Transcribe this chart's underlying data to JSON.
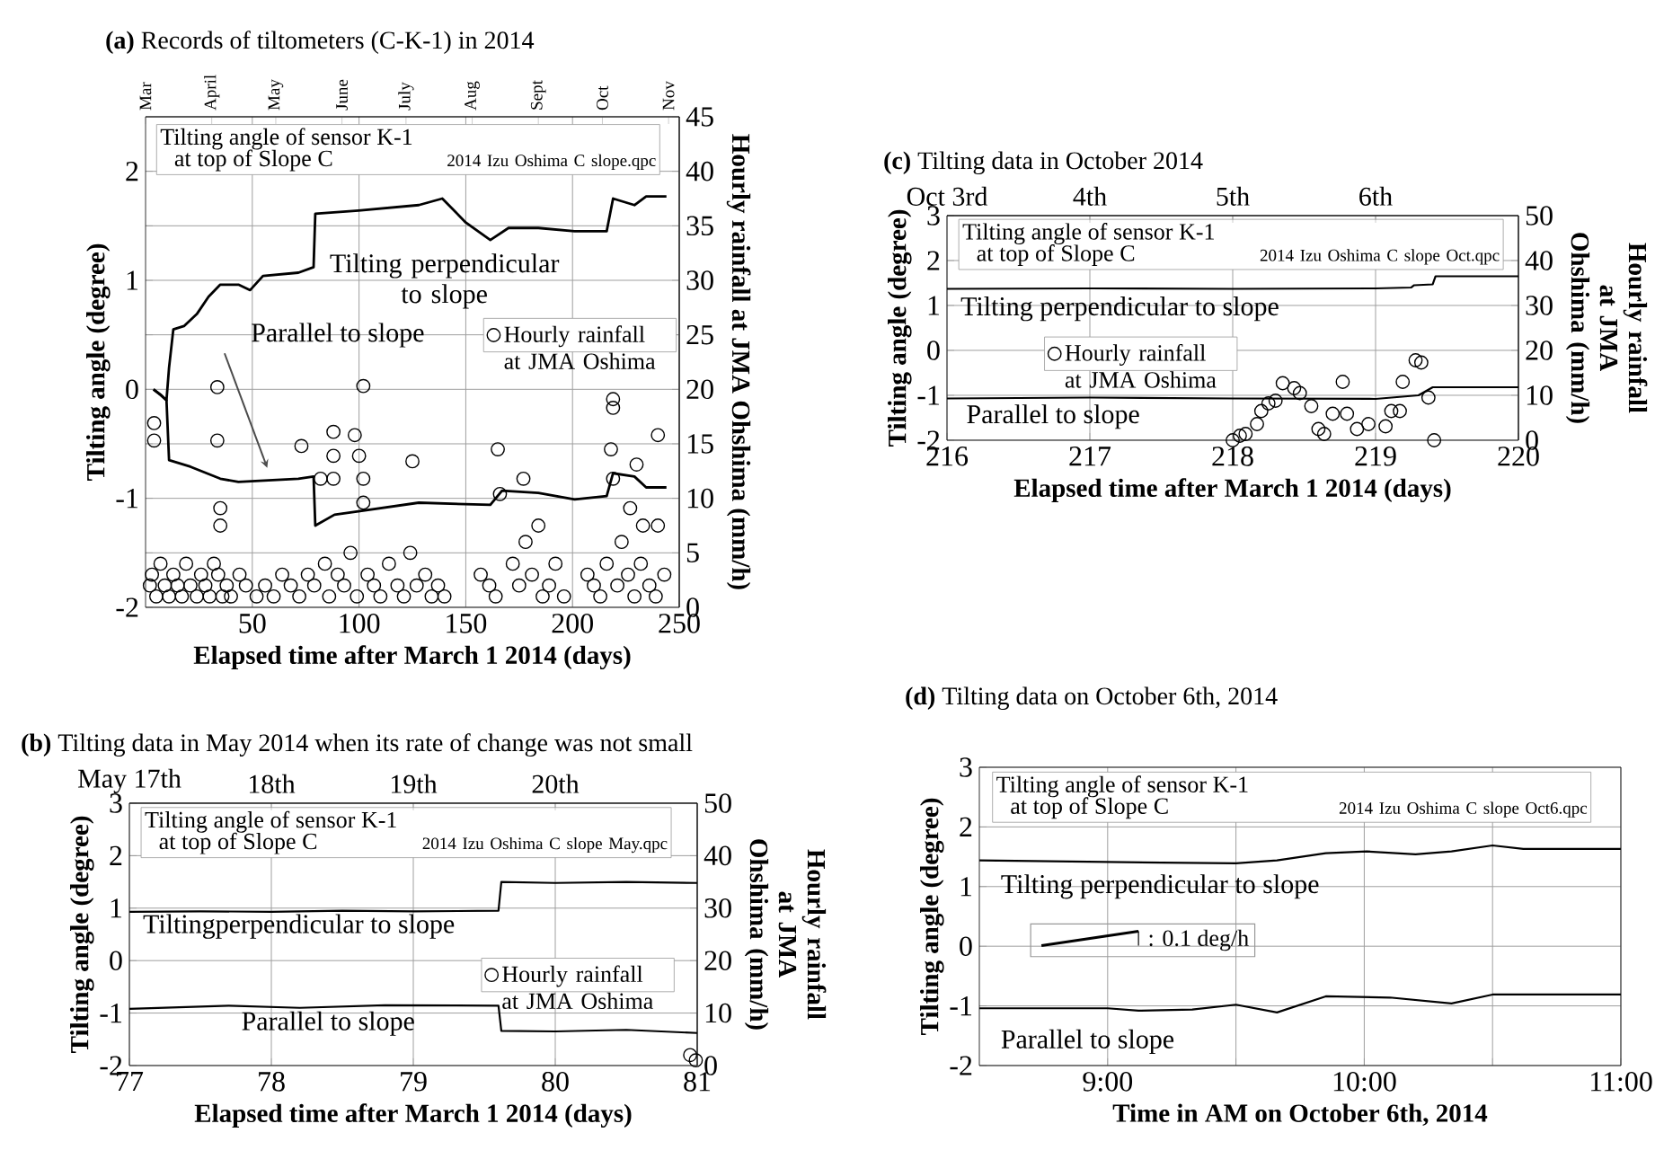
{
  "chart_data": [
    {
      "type": "line",
      "title": "**(a)** Records of tiltometers (C-K-1) in 2014",
      "xlabel": "Elapsed time after March 1 2014 (days)",
      "ylabel": "Tilting angle (degree)",
      "y2label": "Hourly rainfall at JMA Ohshima (mm/h)",
      "xlim": [
        0,
        250
      ],
      "xticks": [
        50,
        100,
        150,
        200,
        250
      ],
      "x2lim": [
        "2014-03-01",
        "2014-11-06"
      ],
      "x2ticks": [
        {
          "value": "2014-03-01",
          "label": "Mar"
        },
        {
          "value": "2014-04-01",
          "label": "April"
        },
        {
          "value": "2014-05-01",
          "label": "May"
        },
        {
          "value": "2014-06-01",
          "label": "June"
        },
        {
          "value": "2014-07-01",
          "label": "July"
        },
        {
          "value": "2014-08-01",
          "label": "Aug"
        },
        {
          "value": "2014-09-01",
          "label": "Sept"
        },
        {
          "value": "2014-10-01",
          "label": "Oct"
        },
        {
          "value": "2014-11-01",
          "label": "Nov"
        }
      ],
      "ylim": [
        -2,
        2.5
      ],
      "yticks": [
        -2,
        {
          "value": -1.5,
          "label": null
        },
        -1,
        {
          "value": -0.5,
          "label": null
        },
        0,
        {
          "value": 0.5,
          "label": null
        },
        1,
        {
          "value": 1.5,
          "label": null
        },
        2
      ],
      "y2lim": [
        0,
        45
      ],
      "y2ticks": [
        0,
        5,
        10,
        15,
        20,
        25,
        30,
        35,
        40,
        45
      ],
      "grid": true,
      "legend": "right",
      "annotations": [
        "Tilting angle of sensor K-1",
        "at top of Slope C",
        "2014 Izu Oshima C slope.qpc"
      ],
      "series": [
        {
          "name": "Tilting perpendicular to slope",
          "color": "#000000",
          "x": [
            3.7,
            7,
            9.8,
            11,
            13,
            18,
            24,
            29.5,
            35,
            43.5,
            49,
            55,
            71.6,
            78.7,
            79.5,
            99.7,
            128,
            139,
            150,
            161.5,
            170,
            184,
            201,
            216,
            219,
            229,
            234.5,
            244
          ],
          "values": [
            0,
            -0.05,
            -0.1,
            0.2,
            0.55,
            0.58,
            0.69,
            0.85,
            0.96,
            0.96,
            0.91,
            1.04,
            1.07,
            1.12,
            1.61,
            1.64,
            1.69,
            1.75,
            1.53,
            1.37,
            1.48,
            1.48,
            1.45,
            1.45,
            1.75,
            1.69,
            1.77,
            1.77
          ]
        },
        {
          "name": "Parallel to slope",
          "color": "#000000",
          "x": [
            3.7,
            7,
            9.8,
            11,
            21,
            35,
            43.5,
            71.6,
            78.7,
            79.5,
            88.5,
            99.7,
            128,
            161.5,
            167,
            184,
            201,
            216,
            219,
            229,
            234.5,
            244
          ],
          "values": [
            0,
            -0.05,
            -0.1,
            -0.65,
            -0.71,
            -0.82,
            -0.85,
            -0.82,
            -0.8,
            -1.25,
            -1.15,
            -1.12,
            -1.04,
            -1.06,
            -0.93,
            -0.95,
            -1.01,
            -0.98,
            -0.77,
            -0.8,
            -0.9,
            -0.9
          ]
        },
        {
          "type": "scatter",
          "name": "Hourly rainfall at JMA Oshima",
          "color": "#000000",
          "axis": "y2",
          "marker": "circle",
          "x": [
            4,
            4,
            33.6,
            33.6,
            35,
            35,
            73,
            82,
            88,
            88,
            88,
            102,
            98,
            100,
            102,
            102,
            125,
            165,
            177,
            166,
            184,
            219,
            219,
            218,
            219,
            230,
            240,
            227,
            233,
            240,
            2,
            3,
            5,
            7,
            9,
            11,
            13,
            15,
            17,
            19,
            21,
            24,
            26,
            28,
            30,
            32,
            34,
            36,
            38,
            40,
            44,
            47,
            52,
            56,
            60,
            64,
            68,
            72,
            76,
            79,
            84,
            86,
            90,
            93,
            96,
            99,
            104,
            107,
            110,
            114,
            118,
            121,
            124,
            127,
            131,
            134,
            137,
            140,
            157,
            161,
            164,
            172,
            175,
            178,
            181,
            186,
            189,
            192,
            196,
            207,
            210,
            213,
            216,
            221,
            223,
            226,
            229,
            232,
            236,
            239,
            243
          ],
          "values": [
            16.9,
            15.3,
            20.2,
            15.3,
            9.1,
            7.5,
            14.8,
            11.8,
            16.1,
            13.9,
            11.8,
            20.3,
            15.8,
            13.9,
            11.8,
            9.6,
            13.4,
            14.5,
            11.8,
            10.4,
            7.5,
            19.1,
            18.3,
            14.5,
            11.8,
            13.1,
            15.8,
            9.1,
            7.5,
            7.5,
            2,
            3,
            1,
            4,
            2,
            1,
            3,
            2,
            1,
            4,
            2,
            1,
            3,
            2,
            1,
            4,
            3,
            1,
            2,
            1,
            3,
            2,
            1,
            2,
            1,
            3,
            2,
            1,
            3,
            2,
            4,
            1,
            3,
            2,
            5,
            1,
            3,
            2,
            1,
            4,
            2,
            1,
            5,
            2,
            3,
            1,
            2,
            1,
            3,
            2,
            1,
            4,
            2,
            6,
            3,
            1,
            2,
            4,
            1,
            3,
            2,
            1,
            4,
            2,
            6,
            3,
            1,
            4,
            2,
            1,
            3
          ]
        }
      ]
    },
    {
      "type": "line",
      "title": "**(b)** Tilting data in May 2014 when its rate of change was not small",
      "xlabel": "Elapsed time after March 1 2014 (days)",
      "ylabel": "Tilting angle (degree)",
      "y2label": "Hourly rainfall at JMA Ohshima (mm/h)",
      "xlim": [
        77,
        81
      ],
      "xticks": [
        77,
        78,
        79,
        80,
        81
      ],
      "x2lim": [
        "2014-05-17",
        "2014-05-21"
      ],
      "x2ticks": [
        {
          "value": "2014-05-17",
          "label": "May 17th"
        },
        {
          "value": "2014-05-18",
          "label": "18th"
        },
        {
          "value": "2014-05-19",
          "label": "19th"
        },
        {
          "value": "2014-05-20",
          "label": "20th"
        }
      ],
      "ylim": [
        -2,
        3
      ],
      "yticks": [
        -2,
        -1,
        0,
        1,
        2,
        3
      ],
      "y2lim": [
        0,
        50
      ],
      "y2ticks": [
        0,
        10,
        20,
        30,
        40,
        50
      ],
      "grid": true,
      "legend": "bottom right",
      "annotations": [
        "Tilting angle of sensor K-1",
        "at top of Slope C",
        "2014 Izu Oshima C slope May.qpc"
      ],
      "series": [
        {
          "name": "Tiltingperpendicular to slope",
          "color": "#000000",
          "x": [
            77,
            77.5,
            78,
            78.5,
            79,
            79.6,
            79.62,
            80,
            80.5,
            81
          ],
          "values": [
            0.93,
            0.94,
            0.93,
            0.95,
            0.94,
            0.95,
            1.5,
            1.48,
            1.5,
            1.48
          ]
        },
        {
          "name": "Parallel to slope",
          "color": "#000000",
          "x": [
            77,
            77.7,
            78.2,
            78.8,
            79.6,
            79.62,
            80,
            80.5,
            81
          ],
          "values": [
            -0.92,
            -0.86,
            -0.9,
            -0.85,
            -0.86,
            -1.34,
            -1.35,
            -1.32,
            -1.38
          ]
        },
        {
          "type": "scatter",
          "name": "Hourly rainfall at JMA Oshima",
          "color": "#000000",
          "axis": "y2",
          "marker": "circle",
          "x": [
            80.95,
            80.99
          ],
          "values": [
            2,
            1
          ]
        }
      ]
    },
    {
      "type": "line",
      "title": "**(c)** Tilting data in October 2014",
      "xlabel": "Elapsed time after March 1 2014 (days)",
      "ylabel": "Tilting angle (degree)",
      "y2label": "Hourly rainfall at JMA Ohshima (mm/h)",
      "xlim": [
        216,
        220
      ],
      "xticks": [
        216,
        217,
        218,
        219,
        220
      ],
      "x2lim": [
        "2014-10-03",
        "2014-10-07"
      ],
      "x2ticks": [
        {
          "value": "2014-10-03",
          "label": "Oct 3rd"
        },
        {
          "value": "2014-10-04",
          "label": "4th"
        },
        {
          "value": "2014-10-05",
          "label": "5th"
        },
        {
          "value": "2014-10-06",
          "label": "6th"
        }
      ],
      "ylim": [
        -2,
        3
      ],
      "yticks": [
        -2,
        -1,
        0,
        1,
        2,
        3
      ],
      "y2lim": [
        0,
        50
      ],
      "y2ticks": [
        0,
        10,
        20,
        30,
        40,
        50
      ],
      "grid": true,
      "legend": "left",
      "annotations": [
        "Tilting angle of sensor K-1",
        "at top of Slope C",
        "2014 Izu Oshima C slope Oct.qpc"
      ],
      "series": [
        {
          "name": "Tilting perpendicular to slope",
          "color": "#000000",
          "x": [
            216,
            217,
            218,
            219,
            219.25,
            219.27,
            219.4,
            219.42,
            220
          ],
          "values": [
            1.37,
            1.38,
            1.37,
            1.38,
            1.4,
            1.45,
            1.47,
            1.65,
            1.65
          ]
        },
        {
          "name": "Parallel to slope",
          "color": "#000000",
          "x": [
            216,
            217,
            218,
            219,
            219.3,
            219.4,
            220
          ],
          "values": [
            -1.07,
            -1.05,
            -1.07,
            -1.08,
            -1.0,
            -0.82,
            -0.82
          ]
        },
        {
          "type": "scatter",
          "name": "Hourly rainfall at JMA Oshima",
          "color": "#000000",
          "axis": "y2",
          "marker": "circle",
          "x": [
            218.0,
            218.05,
            218.09,
            218.17,
            218.2,
            218.25,
            218.3,
            218.35,
            218.43,
            218.47,
            218.55,
            218.6,
            218.64,
            218.7,
            218.77,
            218.8,
            218.87,
            218.95,
            219.07,
            219.11,
            219.17,
            219.19,
            219.28,
            219.32,
            219.37,
            219.41
          ],
          "values": [
            0,
            1,
            1.4,
            3.6,
            6.5,
            8.2,
            8.8,
            12.7,
            11.6,
            10.5,
            7.6,
            2.5,
            1.4,
            5.9,
            13,
            5.9,
            2.5,
            3.6,
            3.1,
            6.5,
            6.5,
            13,
            17.8,
            17.3,
            9.5,
            0
          ]
        }
      ]
    },
    {
      "type": "line",
      "title": "**(d)** Tilting data on October 6th, 2014",
      "xlabel": "Time in AM on October 6th, 2014",
      "ylabel": "Tilting angle (degree)",
      "xlim": [
        8.5,
        11
      ],
      "xticks": [
        {
          "value": 9,
          "label": "9:00"
        },
        {
          "value": 9.5,
          "label": null
        },
        {
          "value": 10,
          "label": "10:00"
        },
        {
          "value": 10.5,
          "label": null
        },
        {
          "value": 11,
          "label": "11:00"
        }
      ],
      "ylim": [
        -2,
        3
      ],
      "yticks": [
        -2,
        -1,
        0,
        1,
        2,
        3
      ],
      "grid": true,
      "annotations": [
        "Tilting angle of sensor K-1",
        "at top of Slope C",
        "2014 Izu Oshima C slope Oct6.qpc",
        ": 0.1 deg/h"
      ],
      "series": [
        {
          "name": "Tilting perpendicular to slope",
          "color": "#000000",
          "x": [
            8.5,
            9.21,
            9.5,
            9.66,
            9.85,
            10.01,
            10.2,
            10.34,
            10.5,
            10.62,
            11
          ],
          "values": [
            1.44,
            1.4,
            1.39,
            1.44,
            1.56,
            1.59,
            1.54,
            1.59,
            1.69,
            1.63,
            1.63
          ]
        },
        {
          "name": "Parallel to slope",
          "color": "#000000",
          "x": [
            8.5,
            9.0,
            9.12,
            9.33,
            9.5,
            9.66,
            9.85,
            10.1,
            10.34,
            10.5,
            11
          ],
          "values": [
            -1.04,
            -1.04,
            -1.08,
            -1.06,
            -0.98,
            -1.11,
            -0.84,
            -0.86,
            -0.96,
            -0.81,
            -0.81
          ]
        }
      ]
    }
  ]
}
